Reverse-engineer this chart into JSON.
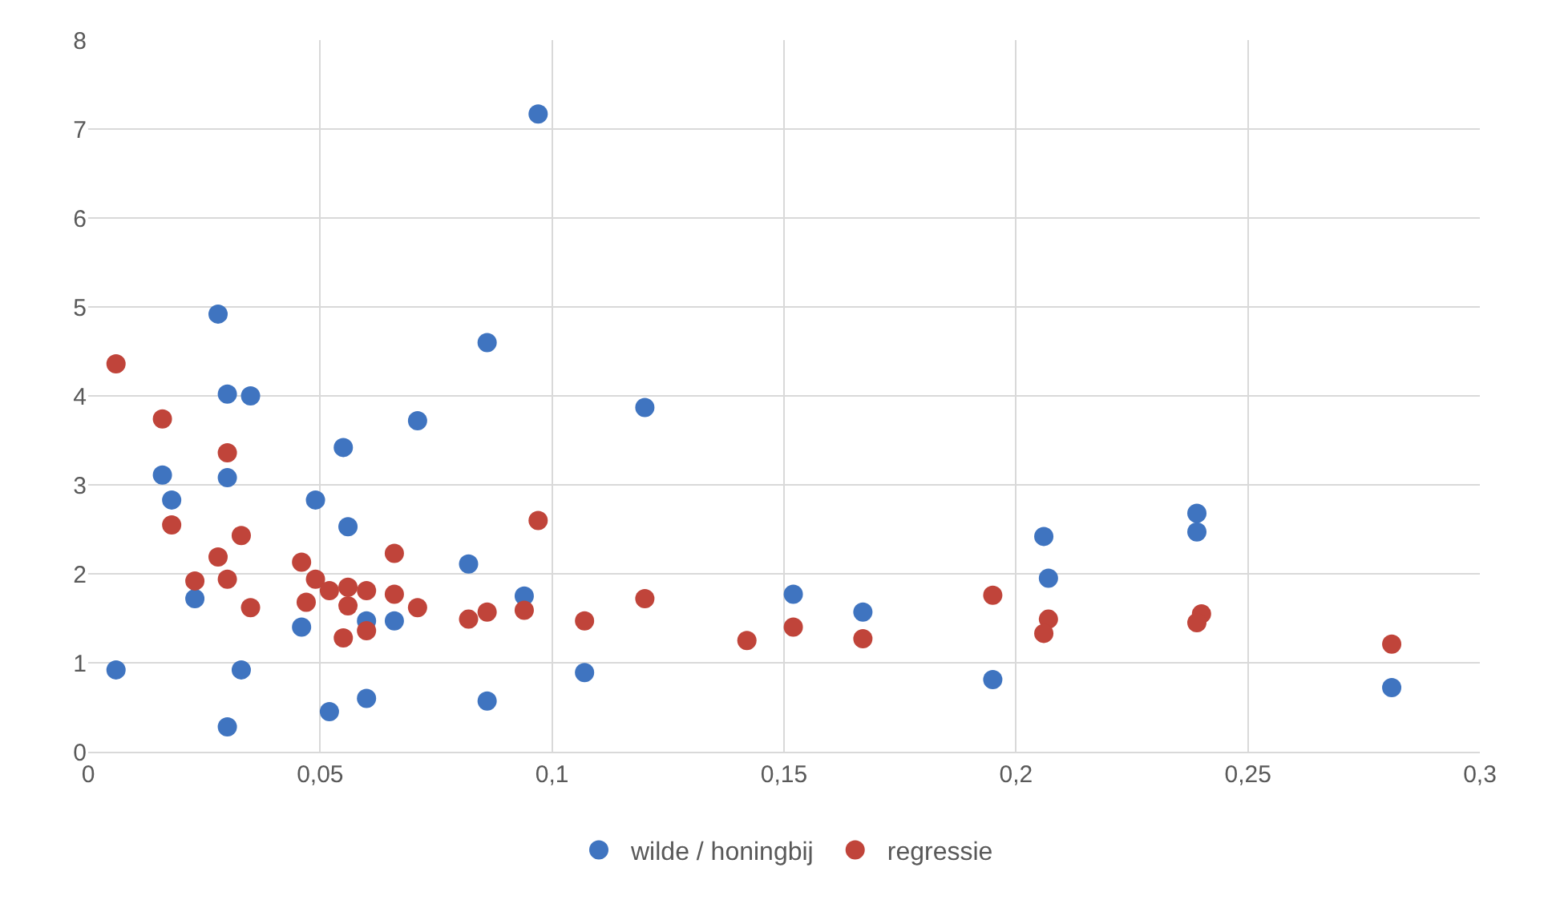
{
  "chart_data": {
    "type": "scatter",
    "xlim": [
      0,
      0.3
    ],
    "ylim": [
      0,
      8
    ],
    "xticks": [
      {
        "value": 0,
        "label": "0"
      },
      {
        "value": 0.05,
        "label": "0,05"
      },
      {
        "value": 0.1,
        "label": "0,1"
      },
      {
        "value": 0.15,
        "label": "0,15"
      },
      {
        "value": 0.2,
        "label": "0,2"
      },
      {
        "value": 0.25,
        "label": "0,25"
      },
      {
        "value": 0.3,
        "label": "0,3"
      }
    ],
    "yticks": [
      0,
      1,
      2,
      3,
      4,
      5,
      6,
      7,
      8
    ],
    "grid": true,
    "legend": "bottom",
    "marker": "circle",
    "series": [
      {
        "name": "wilde / honingbij",
        "color": "#3f74c0",
        "x": [
          0.006,
          0.016,
          0.018,
          0.023,
          0.028,
          0.03,
          0.03,
          0.03,
          0.033,
          0.035,
          0.046,
          0.049,
          0.052,
          0.055,
          0.056,
          0.06,
          0.06,
          0.066,
          0.071,
          0.082,
          0.086,
          0.086,
          0.094,
          0.097,
          0.107,
          0.12,
          0.152,
          0.167,
          0.195,
          0.206,
          0.207,
          0.239,
          0.239,
          0.281
        ],
        "values": [
          0.92,
          3.11,
          2.83,
          1.72,
          4.92,
          4.02,
          3.08,
          0.28,
          0.92,
          4.0,
          1.4,
          2.83,
          0.45,
          3.42,
          2.53,
          1.47,
          0.6,
          1.47,
          3.72,
          2.11,
          4.6,
          0.57,
          1.75,
          7.17,
          0.89,
          3.87,
          1.77,
          1.57,
          0.81,
          2.42,
          1.95,
          2.68,
          2.47,
          0.72
        ]
      },
      {
        "name": "regressie",
        "color": "#c0443a",
        "x": [
          0.006,
          0.016,
          0.03,
          0.018,
          0.033,
          0.028,
          0.03,
          0.023,
          0.035,
          0.046,
          0.049,
          0.047,
          0.052,
          0.056,
          0.056,
          0.06,
          0.055,
          0.06,
          0.066,
          0.066,
          0.071,
          0.082,
          0.086,
          0.094,
          0.097,
          0.107,
          0.12,
          0.142,
          0.152,
          0.167,
          0.195,
          0.207,
          0.206,
          0.24,
          0.239,
          0.281
        ],
        "values": [
          4.36,
          3.74,
          3.36,
          2.55,
          2.43,
          2.19,
          1.94,
          1.92,
          1.62,
          2.13,
          1.94,
          1.68,
          1.81,
          1.85,
          1.64,
          1.81,
          1.28,
          1.36,
          2.23,
          1.77,
          1.62,
          1.49,
          1.57,
          1.59,
          2.6,
          1.47,
          1.72,
          1.25,
          1.4,
          1.27,
          1.76,
          1.49,
          1.33,
          1.55,
          1.45,
          1.21
        ]
      }
    ]
  }
}
